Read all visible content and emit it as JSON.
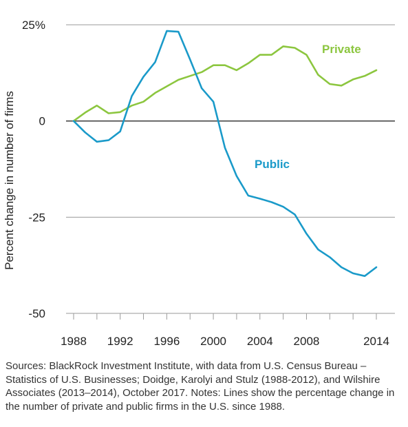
{
  "chart_data": {
    "type": "line",
    "ylabel": "Percent change in number of firms",
    "ylim": [
      -50,
      25
    ],
    "y_ticks": [
      {
        "value": 25,
        "label": "25%"
      },
      {
        "value": 0,
        "label": "0"
      },
      {
        "value": -25,
        "label": "-25"
      },
      {
        "value": -50,
        "label": "-50"
      }
    ],
    "xlim": [
      1988,
      2014
    ],
    "x_ticks": [
      1988,
      1992,
      1996,
      2000,
      2004,
      2008,
      2014
    ],
    "x_tick_marks": [
      1988,
      1990,
      1992,
      1994,
      1996,
      1998,
      2000,
      2002,
      2004,
      2006,
      2008,
      2010,
      2012,
      2014
    ],
    "grid": true,
    "series": [
      {
        "name": "Private",
        "color": "#8cc63f",
        "x": [
          1988,
          1989,
          1990,
          1991,
          1992,
          1993,
          1994,
          1995,
          1996,
          1997,
          1998,
          1999,
          2000,
          2001,
          2002,
          2003,
          2004,
          2005,
          2006,
          2007,
          2008,
          2009,
          2010,
          2011,
          2012,
          2013,
          2014
        ],
        "values": [
          0,
          2.2,
          4,
          2,
          2.3,
          4,
          5,
          7.3,
          9,
          10.7,
          11.7,
          12.7,
          14.5,
          14.5,
          13.2,
          15,
          17.2,
          17.2,
          19.4,
          19,
          17.2,
          12,
          9.6,
          9.2,
          10.8,
          11.7,
          13.2
        ]
      },
      {
        "name": "Public",
        "color": "#1a9ac9",
        "x": [
          1988,
          1989,
          1990,
          1991,
          1992,
          1993,
          1994,
          1995,
          1996,
          1997,
          1998,
          1999,
          2000,
          2001,
          2002,
          2003,
          2004,
          2005,
          2006,
          2007,
          2008,
          2009,
          2010,
          2011,
          2012,
          2013,
          2014
        ],
        "values": [
          0,
          -3,
          -5.4,
          -5,
          -2.7,
          6.5,
          11.5,
          15.3,
          23.4,
          23.2,
          16,
          8.5,
          5,
          -7,
          -14.3,
          -19.4,
          -20.2,
          -21.1,
          -22.3,
          -24.3,
          -29.3,
          -33.4,
          -35.4,
          -38,
          -39.6,
          -40.3,
          -38
        ]
      }
    ],
    "annotations": [
      {
        "text": "Private",
        "series": "Private"
      },
      {
        "text": "Public",
        "series": "Public"
      }
    ]
  },
  "source_note": "Sources: BlackRock Investment Institute, with data from U.S. Census Bureau – Statistics of U.S. Businesses; Doidge, Karolyi and Stulz (1988-2012), and Wilshire Associates (2013–2014), October 2017. Notes: Lines show the percentage change in the number of private and public firms in the U.S. since 1988."
}
